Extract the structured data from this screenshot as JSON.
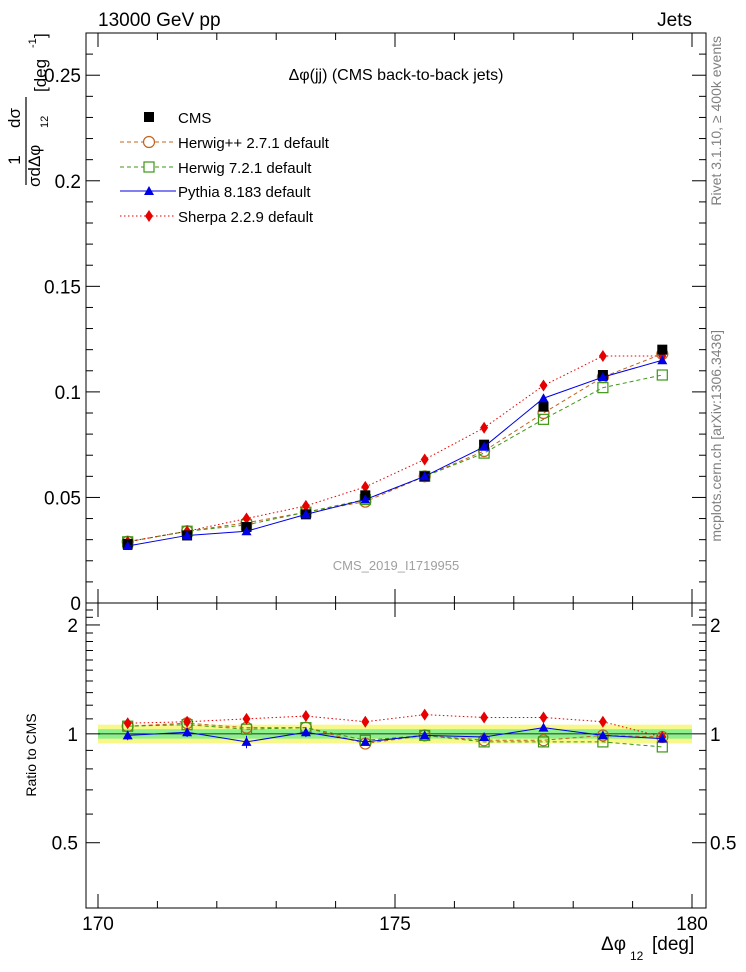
{
  "header": {
    "left": "13000 GeV pp",
    "right": "Jets"
  },
  "side_labels": {
    "rivet": "Rivet 3.1.10, ≥ 400k events",
    "mcplots": "mcplots.cern.ch [arXiv:1306.3436]"
  },
  "watermark": "CMS_2019_I1719955",
  "colors": {
    "cms": "#000000",
    "herwigpp": "#c0641e",
    "herwig7": "#3c9614",
    "pythia": "#0000e6",
    "sherpa": "#e60000",
    "band_inner": "#8cf08c",
    "band_outer": "#f8f88a"
  },
  "chart_data": [
    {
      "type": "line",
      "panel": "main",
      "title": "Δφ(jj) (CMS back-to-back jets)",
      "ylabel_num": "1",
      "ylabel_num2": "dσ",
      "ylabel_den": "σdΔφ",
      "ylabel_den_sub": "12",
      "ylabel_unit": "[deg",
      "ylabel_unit_sup": "-1",
      "ylabel_unit_end": "]",
      "xlim": [
        170,
        180
      ],
      "ylim": [
        0,
        0.27
      ],
      "yticks": [
        0,
        0.05,
        0.1,
        0.15,
        0.2,
        0.25
      ],
      "ytick_labels": [
        "0",
        "0.05",
        "0.1",
        "0.15",
        "0.2",
        "0.25"
      ],
      "x": [
        170.5,
        171.5,
        172.5,
        173.5,
        174.5,
        175.5,
        176.5,
        177.5,
        178.5,
        179.5
      ],
      "series": [
        {
          "key": "cms",
          "name": "CMS",
          "marker": "square-filled",
          "line": "none",
          "values": [
            0.028,
            0.032,
            0.036,
            0.042,
            0.051,
            0.06,
            0.075,
            0.093,
            0.108,
            0.12
          ]
        },
        {
          "key": "herwigpp",
          "name": "Herwig++ 2.7.1 default",
          "marker": "circle-open",
          "line": "dashed",
          "values": [
            0.029,
            0.034,
            0.038,
            0.043,
            0.048,
            0.06,
            0.072,
            0.09,
            0.107,
            0.118
          ]
        },
        {
          "key": "herwig7",
          "name": "Herwig 7.2.1 default",
          "marker": "square-open",
          "line": "dashed",
          "values": [
            0.029,
            0.034,
            0.037,
            0.043,
            0.049,
            0.06,
            0.071,
            0.087,
            0.102,
            0.108
          ]
        },
        {
          "key": "pythia",
          "name": "Pythia 8.183 default",
          "marker": "triangle-filled",
          "line": "solid",
          "values": [
            0.027,
            0.032,
            0.034,
            0.042,
            0.049,
            0.06,
            0.074,
            0.097,
            0.107,
            0.115
          ]
        },
        {
          "key": "sherpa",
          "name": "Sherpa 2.2.9 default",
          "marker": "diamond-filled",
          "line": "dotted",
          "values": [
            0.029,
            0.034,
            0.04,
            0.046,
            0.055,
            0.068,
            0.083,
            0.103,
            0.117,
            0.117
          ]
        }
      ]
    },
    {
      "type": "line",
      "panel": "ratio",
      "ylabel": "Ratio to CMS",
      "xlabel": "Δφ",
      "xlabel_sub": "12",
      "xlabel_unit": "[deg]",
      "xlim": [
        170,
        180
      ],
      "ylim": [
        0.33,
        2.3
      ],
      "xticks": [
        170,
        175,
        180
      ],
      "xtick_labels": [
        "170",
        "175",
        "180"
      ],
      "yticks": [
        0.5,
        1,
        2
      ],
      "ytick_labels": [
        "0.5",
        "1",
        "2"
      ],
      "band_inner": [
        0.97,
        1.03
      ],
      "band_outer": [
        0.94,
        1.06
      ],
      "x": [
        170.5,
        171.5,
        172.5,
        173.5,
        174.5,
        175.5,
        176.5,
        177.5,
        178.5,
        179.5
      ],
      "series": [
        {
          "key": "herwigpp",
          "values": [
            1.05,
            1.07,
            1.04,
            1.04,
            0.94,
            0.99,
            0.96,
            0.96,
            0.99,
            0.98
          ]
        },
        {
          "key": "herwig7",
          "values": [
            1.05,
            1.06,
            1.03,
            1.04,
            0.96,
            0.99,
            0.95,
            0.95,
            0.95,
            0.92
          ]
        },
        {
          "key": "pythia",
          "values": [
            0.99,
            1.01,
            0.95,
            1.01,
            0.95,
            0.99,
            0.98,
            1.04,
            0.99,
            0.97
          ]
        },
        {
          "key": "sherpa",
          "values": [
            1.07,
            1.08,
            1.1,
            1.12,
            1.08,
            1.13,
            1.11,
            1.11,
            1.08,
            0.98
          ]
        }
      ]
    }
  ]
}
